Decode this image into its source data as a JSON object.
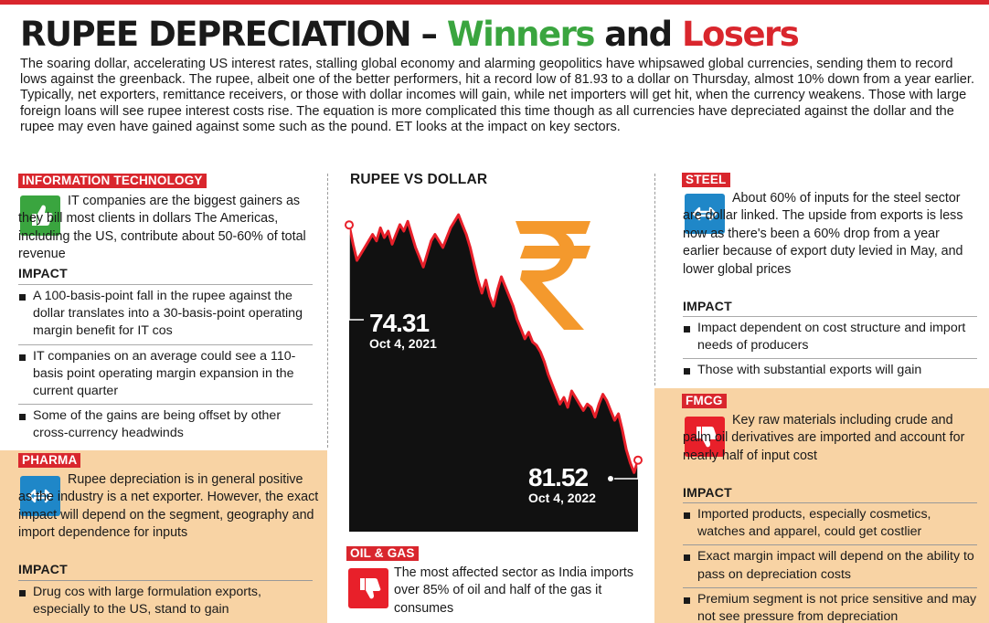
{
  "header": {
    "title_main": "RUPEE DEPRECIATION – ",
    "title_winners": "Winners",
    "title_and": " and ",
    "title_losers": "Losers",
    "intro": "The soaring dollar, accelerating US interest rates, stalling global economy and alarming geopolitics have whipsawed global currencies, sending them to record lows against the greenback. The rupee, albeit one of the better performers, hit a record low of 81.93 to a dollar on Thursday, almost 10% down from a year earlier. Typically, net exporters, remittance receivers, or those with dollar incomes will gain, while net importers will get hit, when the currency weakens. Those with large foreign loans will see rupee interest costs rise. The equation is more complicated this time though as all currencies have depreciated against the dollar and the rupee may even have gained against some such as the pound. ET looks at the impact on key sectors."
  },
  "impact_label": "IMPACT",
  "it": {
    "tag": "INFORMATION TECHNOLOGY",
    "icon": "thumbs-up-icon",
    "icon_color": "#3aa53f",
    "text": "IT companies are the biggest gainers as they bill most clients in dollars The Americas, including the US, contribute about 50-60% of total revenue",
    "impacts": [
      "A 100-basis-point fall in the rupee against the dollar translates into a 30-basis-point operating margin benefit for IT cos",
      "IT companies on an average could see a 110-basis point operating margin expansion in the current quarter",
      "Some of the gains are being offset by other cross-currency headwinds"
    ]
  },
  "pharma": {
    "tag": "PHARMA",
    "icon": "swap-arrows-icon",
    "icon_color": "#1f87c8",
    "text": "Rupee depreciation is in general positive as the industry is a net exporter. However, the exact impact will depend on the segment, geography and import dependence for inputs",
    "impacts": [
      "Drug cos with large formulation exports, especially to the US, stand to gain"
    ]
  },
  "chart": {
    "title": "RUPEE VS DOLLAR",
    "start_value": "74.31",
    "start_date": "Oct 4, 2021",
    "end_value": "81.52",
    "end_date": "Oct 4, 2022",
    "symbol": "₹",
    "symbol_color": "#f39422",
    "line_color": "#e8202a"
  },
  "chart_data": {
    "type": "area",
    "title": "RUPEE VS DOLLAR",
    "x_start": "Oct 4, 2021",
    "x_end": "Oct 4, 2022",
    "start": 74.31,
    "end": 81.52,
    "values": [
      74.31,
      74.9,
      75.4,
      75.2,
      75.0,
      74.8,
      74.6,
      74.8,
      74.4,
      74.7,
      74.5,
      74.9,
      74.6,
      74.3,
      74.5,
      74.2,
      74.6,
      75.0,
      75.3,
      75.6,
      75.2,
      74.8,
      74.6,
      74.8,
      75.0,
      74.7,
      74.4,
      74.2,
      74.0,
      74.3,
      74.6,
      75.0,
      75.5,
      76.0,
      76.4,
      76.0,
      76.5,
      76.8,
      76.3,
      75.9,
      76.2,
      76.5,
      76.8,
      77.2,
      77.5,
      77.8,
      77.6,
      77.9,
      78.0,
      78.2,
      78.5,
      78.9,
      79.2,
      79.5,
      79.8,
      79.6,
      79.9,
      79.4,
      79.6,
      79.8,
      80.0,
      79.8,
      79.9,
      80.2,
      79.8,
      79.5,
      79.7,
      80.0,
      80.3,
      80.1,
      80.6,
      81.2,
      81.6,
      81.9,
      81.52
    ]
  },
  "oil": {
    "tag": "OIL & GAS",
    "icon": "thumbs-down-icon",
    "icon_color": "#e8202a",
    "text": "The most affected sector as India imports over 85% of oil and half of the gas it consumes"
  },
  "steel": {
    "tag": "STEEL",
    "icon": "swap-arrows-icon",
    "icon_color": "#1f87c8",
    "text": "About 60% of inputs for the steel sector are dollar linked. The upside from exports is less now as there's been a 60% drop from a year earlier because of export duty levied in May, and lower global prices",
    "impacts": [
      "Impact dependent on cost structure and import needs of producers",
      "Those with substantial exports will gain"
    ]
  },
  "fmcg": {
    "tag": "FMCG",
    "icon": "thumbs-down-icon",
    "icon_color": "#e8202a",
    "text": "Key raw materials including crude and palm oil derivatives are imported and account for nearly half of input cost",
    "impacts": [
      "Imported products, especially cosmetics, watches and apparel, could get costlier",
      "Exact margin impact will depend on the ability to pass on depreciation costs",
      "Premium segment is not price sensitive and may not see pressure from depreciation"
    ]
  }
}
